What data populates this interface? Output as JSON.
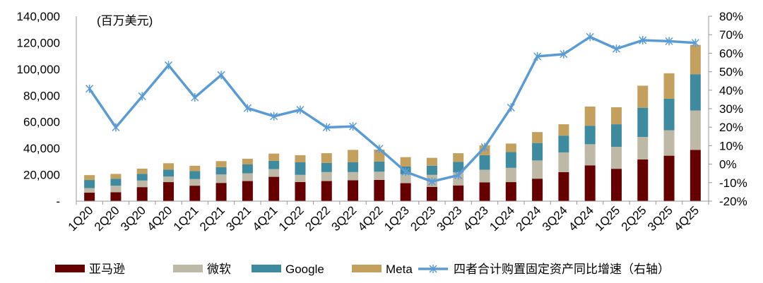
{
  "chart_data": {
    "type": "bar",
    "stacked": true,
    "unit_label": "(百万美元)",
    "categories": [
      "1Q20",
      "2Q20",
      "3Q20",
      "4Q20",
      "1Q21",
      "2Q21",
      "3Q21",
      "4Q21",
      "1Q22",
      "2Q22",
      "3Q22",
      "4Q22",
      "1Q23",
      "2Q23",
      "3Q23",
      "4Q23",
      "1Q24",
      "2Q24",
      "3Q24",
      "4Q24",
      "1Q25",
      "2Q25",
      "3Q25",
      "4Q25"
    ],
    "series": [
      {
        "name": "亚马逊",
        "color": "#660000",
        "values": [
          6400,
          6700,
          10600,
          14400,
          11700,
          13800,
          15200,
          18400,
          14500,
          15200,
          15800,
          16100,
          13600,
          10800,
          11900,
          14200,
          14400,
          17000,
          22000,
          27100,
          24500,
          31600,
          34400,
          38800
        ]
      },
      {
        "name": "微软",
        "color": "#BDB9A6",
        "values": [
          3500,
          5000,
          5000,
          4200,
          5000,
          6400,
          5900,
          5900,
          5400,
          6800,
          6200,
          6200,
          6800,
          9100,
          9900,
          9600,
          10800,
          13800,
          14900,
          16000,
          16600,
          17000,
          19300,
          29800
        ]
      },
      {
        "name": "Google",
        "color": "#3E8A9E",
        "values": [
          6100,
          5300,
          5100,
          5200,
          6000,
          5500,
          6700,
          6200,
          9500,
          6900,
          7400,
          7700,
          5800,
          6900,
          8000,
          11000,
          12000,
          13200,
          12700,
          14000,
          17100,
          22100,
          23800,
          27500
        ]
      },
      {
        "name": "Meta",
        "color": "#C4A05E",
        "values": [
          3700,
          3600,
          3900,
          4900,
          4100,
          4600,
          4300,
          5500,
          5400,
          7400,
          9400,
          9000,
          7100,
          6000,
          6500,
          7400,
          6400,
          8300,
          8600,
          14500,
          12900,
          16700,
          19300,
          22200
        ]
      }
    ],
    "line_series": {
      "name": "四者合计购置固定资产同比增速（右轴）",
      "color": "#5B9BD5",
      "axis": "right",
      "values": [
        40.8,
        19.9,
        36.7,
        53.5,
        36.1,
        48.2,
        30.3,
        25.9,
        29.4,
        19.9,
        20.4,
        8.3,
        -4.1,
        -9.4,
        -6.0,
        9.2,
        30.6,
        58.3,
        59.5,
        68.8,
        62.4,
        67.0,
        66.5,
        65.6
      ]
    },
    "y_left": {
      "min": 0,
      "max": 140000,
      "ticks": [
        "-",
        "20,000",
        "40,000",
        "60,000",
        "80,000",
        "100,000",
        "120,000",
        "140,000"
      ]
    },
    "y_right": {
      "min": -20,
      "max": 80,
      "ticks": [
        "-20%",
        "-10%",
        "0%",
        "10%",
        "20%",
        "30%",
        "40%",
        "50%",
        "60%",
        "70%",
        "80%"
      ]
    },
    "grid": false,
    "legend_position": "bottom"
  }
}
